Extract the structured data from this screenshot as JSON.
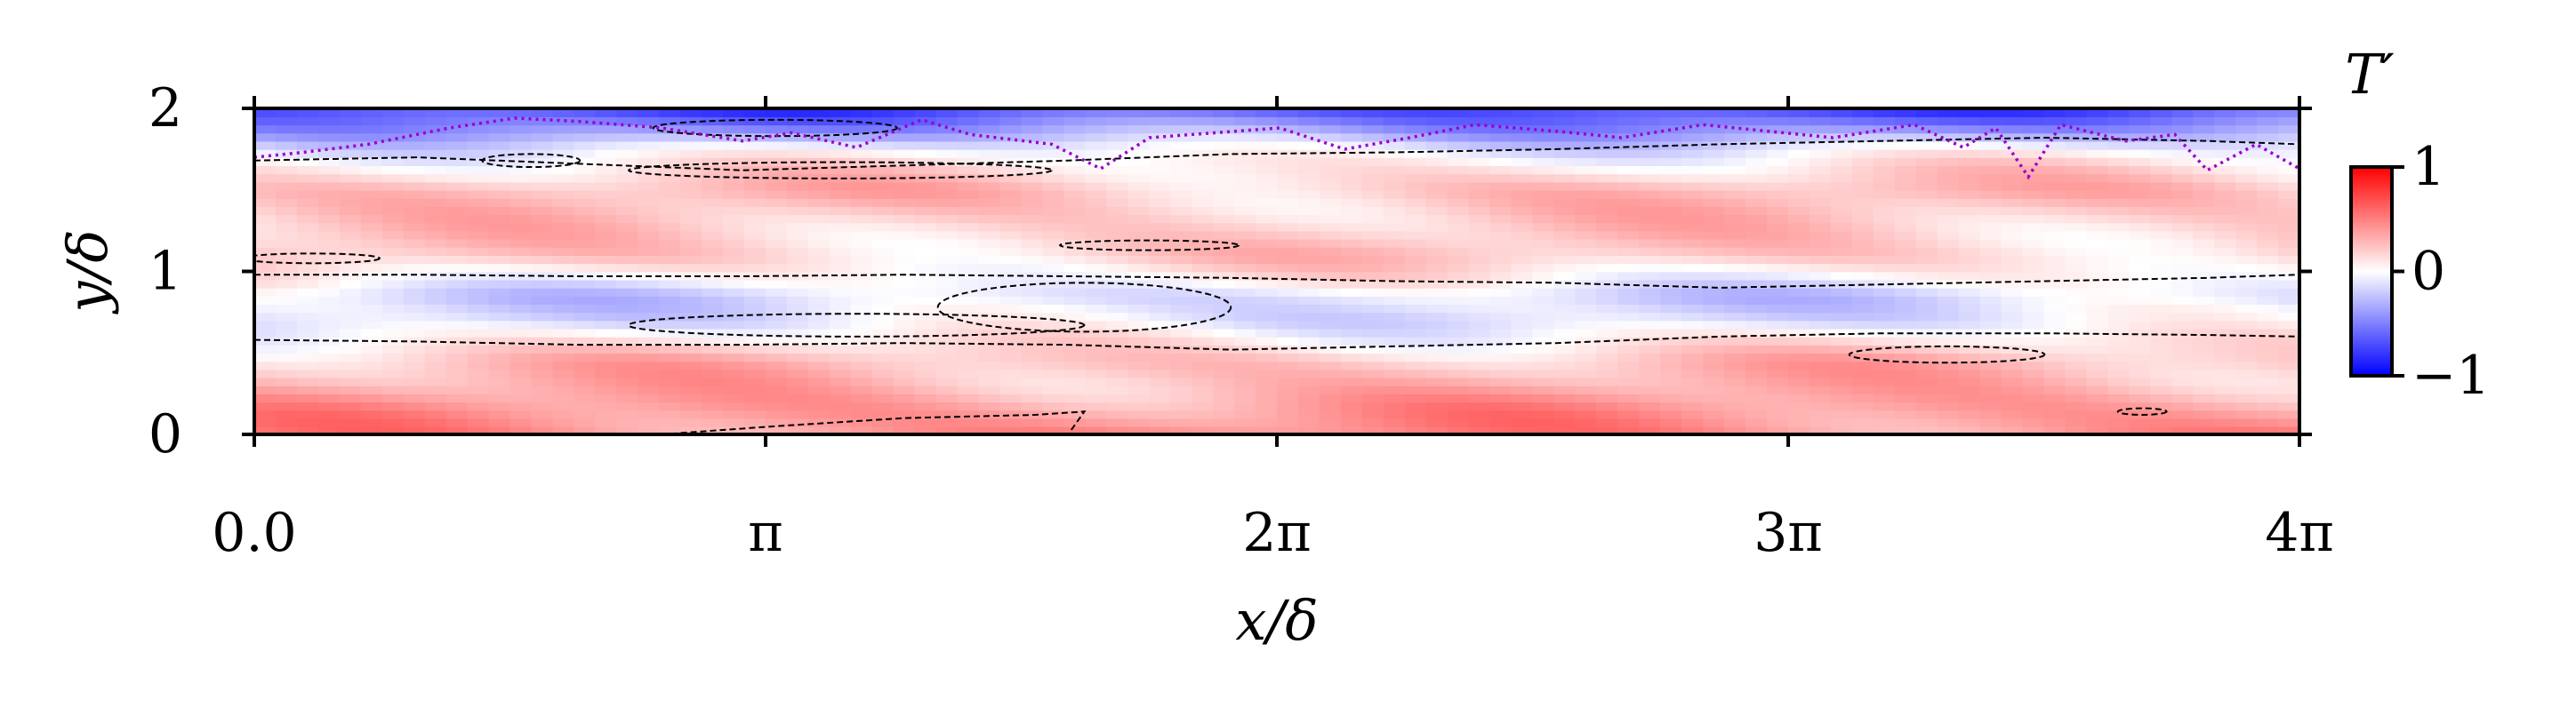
{
  "chart_data": {
    "type": "heatmap",
    "title": "",
    "xlabel": "x/δ",
    "ylabel": "y/δ",
    "xlim": [
      0,
      12.566
    ],
    "ylim": [
      0,
      2
    ],
    "x_ticks": [
      {
        "value": 0,
        "label": "0.0"
      },
      {
        "value": 3.1416,
        "label": "π"
      },
      {
        "value": 6.2832,
        "label": "2π"
      },
      {
        "value": 9.4248,
        "label": "3π"
      },
      {
        "value": 12.566,
        "label": "4π"
      }
    ],
    "y_ticks": [
      {
        "value": 0,
        "label": "0"
      },
      {
        "value": 1,
        "label": "1"
      },
      {
        "value": 2,
        "label": "2"
      }
    ],
    "colorbar": {
      "title": "T′",
      "range": [
        -1,
        1
      ],
      "ticks": [
        {
          "value": 1,
          "label": "1"
        },
        {
          "value": 0,
          "label": "0"
        },
        {
          "value": -1,
          "label": "−1"
        }
      ],
      "colormap": [
        "#0000ff",
        "#ffffff",
        "#ff0000"
      ]
    },
    "field_profile_by_y": [
      {
        "y": 0.0,
        "value": 0.45
      },
      {
        "y": 0.15,
        "value": 0.4
      },
      {
        "y": 0.3,
        "value": 0.3
      },
      {
        "y": 0.45,
        "value": 0.25
      },
      {
        "y": 0.6,
        "value": 0.05
      },
      {
        "y": 0.7,
        "value": -0.1
      },
      {
        "y": 0.85,
        "value": -0.15
      },
      {
        "y": 0.98,
        "value": 0.05
      },
      {
        "y": 1.1,
        "value": 0.2
      },
      {
        "y": 1.3,
        "value": 0.2
      },
      {
        "y": 1.5,
        "value": 0.25
      },
      {
        "y": 1.65,
        "value": 0.1
      },
      {
        "y": 1.75,
        "value": -0.05
      },
      {
        "y": 1.85,
        "value": -0.35
      },
      {
        "y": 1.95,
        "value": -0.6
      },
      {
        "y": 2.0,
        "value": -0.7
      }
    ],
    "contour_style": "black dashed",
    "interface_line": {
      "color": "#9900cc",
      "style": "dotted",
      "x": [
        0,
        0.3,
        0.7,
        1.2,
        1.6,
        2.0,
        2.5,
        3.0,
        3.3,
        3.7,
        4.1,
        4.4,
        4.9,
        5.2,
        5.5,
        5.9,
        6.3,
        6.7,
        7.1,
        7.5,
        8.0,
        8.4,
        8.9,
        9.3,
        9.7,
        10.2,
        10.5,
        10.7,
        10.9,
        11.1,
        11.5,
        11.8,
        12.0,
        12.3,
        12.566
      ],
      "y": [
        1.7,
        1.73,
        1.78,
        1.88,
        1.94,
        1.92,
        1.88,
        1.8,
        1.85,
        1.76,
        1.93,
        1.84,
        1.78,
        1.63,
        1.82,
        1.85,
        1.88,
        1.75,
        1.82,
        1.9,
        1.86,
        1.82,
        1.9,
        1.86,
        1.82,
        1.9,
        1.76,
        1.88,
        1.58,
        1.9,
        1.8,
        1.84,
        1.62,
        1.78,
        1.63
      ]
    },
    "contours": [
      {
        "closed": false,
        "x": [
          0,
          1.0,
          2.0,
          3.0,
          4.0,
          5.0,
          6.0,
          7.0,
          8.0,
          9.0,
          10.0,
          11.0,
          12.0,
          12.566
        ],
        "y": [
          0.98,
          0.98,
          0.97,
          0.97,
          0.98,
          0.97,
          0.96,
          0.94,
          0.93,
          0.9,
          0.92,
          0.94,
          0.96,
          0.98
        ]
      },
      {
        "closed": false,
        "x": [
          0,
          1.0,
          2.0,
          3.0,
          4.0,
          5.0,
          6.0,
          7.0,
          8.0,
          9.0,
          10.0,
          11.0,
          12.0,
          12.566
        ],
        "y": [
          0.58,
          0.57,
          0.55,
          0.55,
          0.56,
          0.55,
          0.52,
          0.54,
          0.56,
          0.6,
          0.62,
          0.62,
          0.61,
          0.6
        ]
      },
      {
        "closed": false,
        "x": [
          0,
          1.0,
          2.0,
          3.0,
          4.0,
          5.0,
          6.0,
          7.0,
          8.0,
          9.0,
          10.0,
          11.0,
          12.0,
          12.566
        ],
        "y": [
          1.68,
          1.7,
          1.66,
          1.62,
          1.65,
          1.68,
          1.72,
          1.73,
          1.75,
          1.78,
          1.8,
          1.82,
          1.8,
          1.78
        ]
      },
      {
        "closed": false,
        "x": [
          2.5,
          3.2,
          4.0,
          4.8,
          5.1,
          5.0
        ],
        "y": [
          0.0,
          0.05,
          0.1,
          0.12,
          0.14,
          0.0
        ]
      },
      {
        "closed": true,
        "cx": 3.7,
        "cy": 0.67,
        "rx": 1.4,
        "ry": 0.07
      },
      {
        "closed": true,
        "cx": 5.1,
        "cy": 0.78,
        "rx": 0.9,
        "ry": 0.15
      },
      {
        "closed": true,
        "cx": 5.5,
        "cy": 1.16,
        "rx": 0.55,
        "ry": 0.03
      },
      {
        "closed": true,
        "cx": 0.35,
        "cy": 1.08,
        "rx": 0.42,
        "ry": 0.03
      },
      {
        "closed": true,
        "cx": 10.4,
        "cy": 0.49,
        "rx": 0.6,
        "ry": 0.05
      },
      {
        "closed": true,
        "cx": 3.2,
        "cy": 1.88,
        "rx": 0.75,
        "ry": 0.05
      },
      {
        "closed": true,
        "cx": 3.6,
        "cy": 1.62,
        "rx": 1.3,
        "ry": 0.05
      },
      {
        "closed": true,
        "cx": 1.7,
        "cy": 1.68,
        "rx": 0.3,
        "ry": 0.04
      },
      {
        "closed": true,
        "cx": 11.6,
        "cy": 0.14,
        "rx": 0.15,
        "ry": 0.02
      }
    ]
  }
}
